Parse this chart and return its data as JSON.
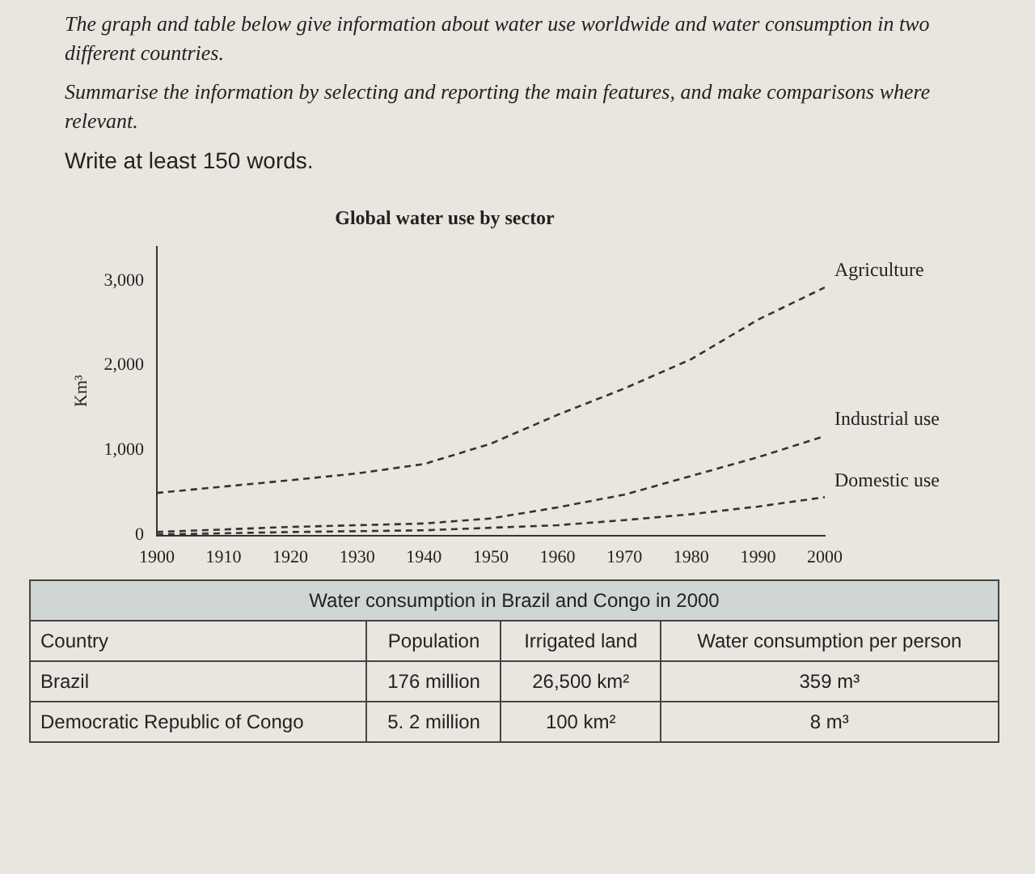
{
  "chart_data": [
    {
      "type": "line",
      "title": "Global water use by sector",
      "ylabel": "Km³",
      "annotations": [
        "The graph and table below give information about water use worldwide and water consumption in two different countries.",
        "Summarise the information by selecting and reporting the main features, and make comparisons where relevant.",
        "Write at least 150 words."
      ],
      "x": [
        1900,
        1910,
        1920,
        1930,
        1940,
        1950,
        1960,
        1970,
        1980,
        1990,
        2000
      ],
      "series": [
        {
          "name": "Agriculture",
          "color": "#333333",
          "values": [
            500,
            575,
            650,
            730,
            840,
            1080,
            1420,
            1730,
            2075,
            2540,
            2920
          ]
        },
        {
          "name": "Industrial use",
          "color": "#333333",
          "values": [
            40,
            70,
            100,
            120,
            140,
            200,
            330,
            480,
            700,
            920,
            1170
          ]
        },
        {
          "name": "Domestic use",
          "color": "#333333",
          "values": [
            10,
            25,
            40,
            50,
            60,
            90,
            120,
            180,
            250,
            340,
            450
          ]
        }
      ],
      "xlim": [
        1900,
        2000
      ],
      "xticks": [
        1900,
        1910,
        1920,
        1930,
        1940,
        1950,
        1960,
        1970,
        1980,
        1990,
        2000
      ],
      "ylim": [
        0,
        3400
      ],
      "yticks": [
        0,
        {
          "value": 1000,
          "label": "1,000"
        },
        {
          "value": 2000,
          "label": "2,000"
        },
        {
          "value": 3000,
          "label": "3,000"
        }
      ],
      "grid": false,
      "legend": false,
      "marker": "none",
      "line_style": "dashed"
    },
    {
      "type": "other",
      "title": "Water consumption in Brazil and Congo in 2000",
      "annotations": [
        "Country",
        "Population",
        "Irrigated land",
        "Water consumption per person",
        "Brazil",
        "176 million",
        "26,500 km²",
        "359 m³",
        "Democratic Republic of Congo",
        "5. 2 million",
        "100 km²",
        "8 m³"
      ]
    }
  ]
}
